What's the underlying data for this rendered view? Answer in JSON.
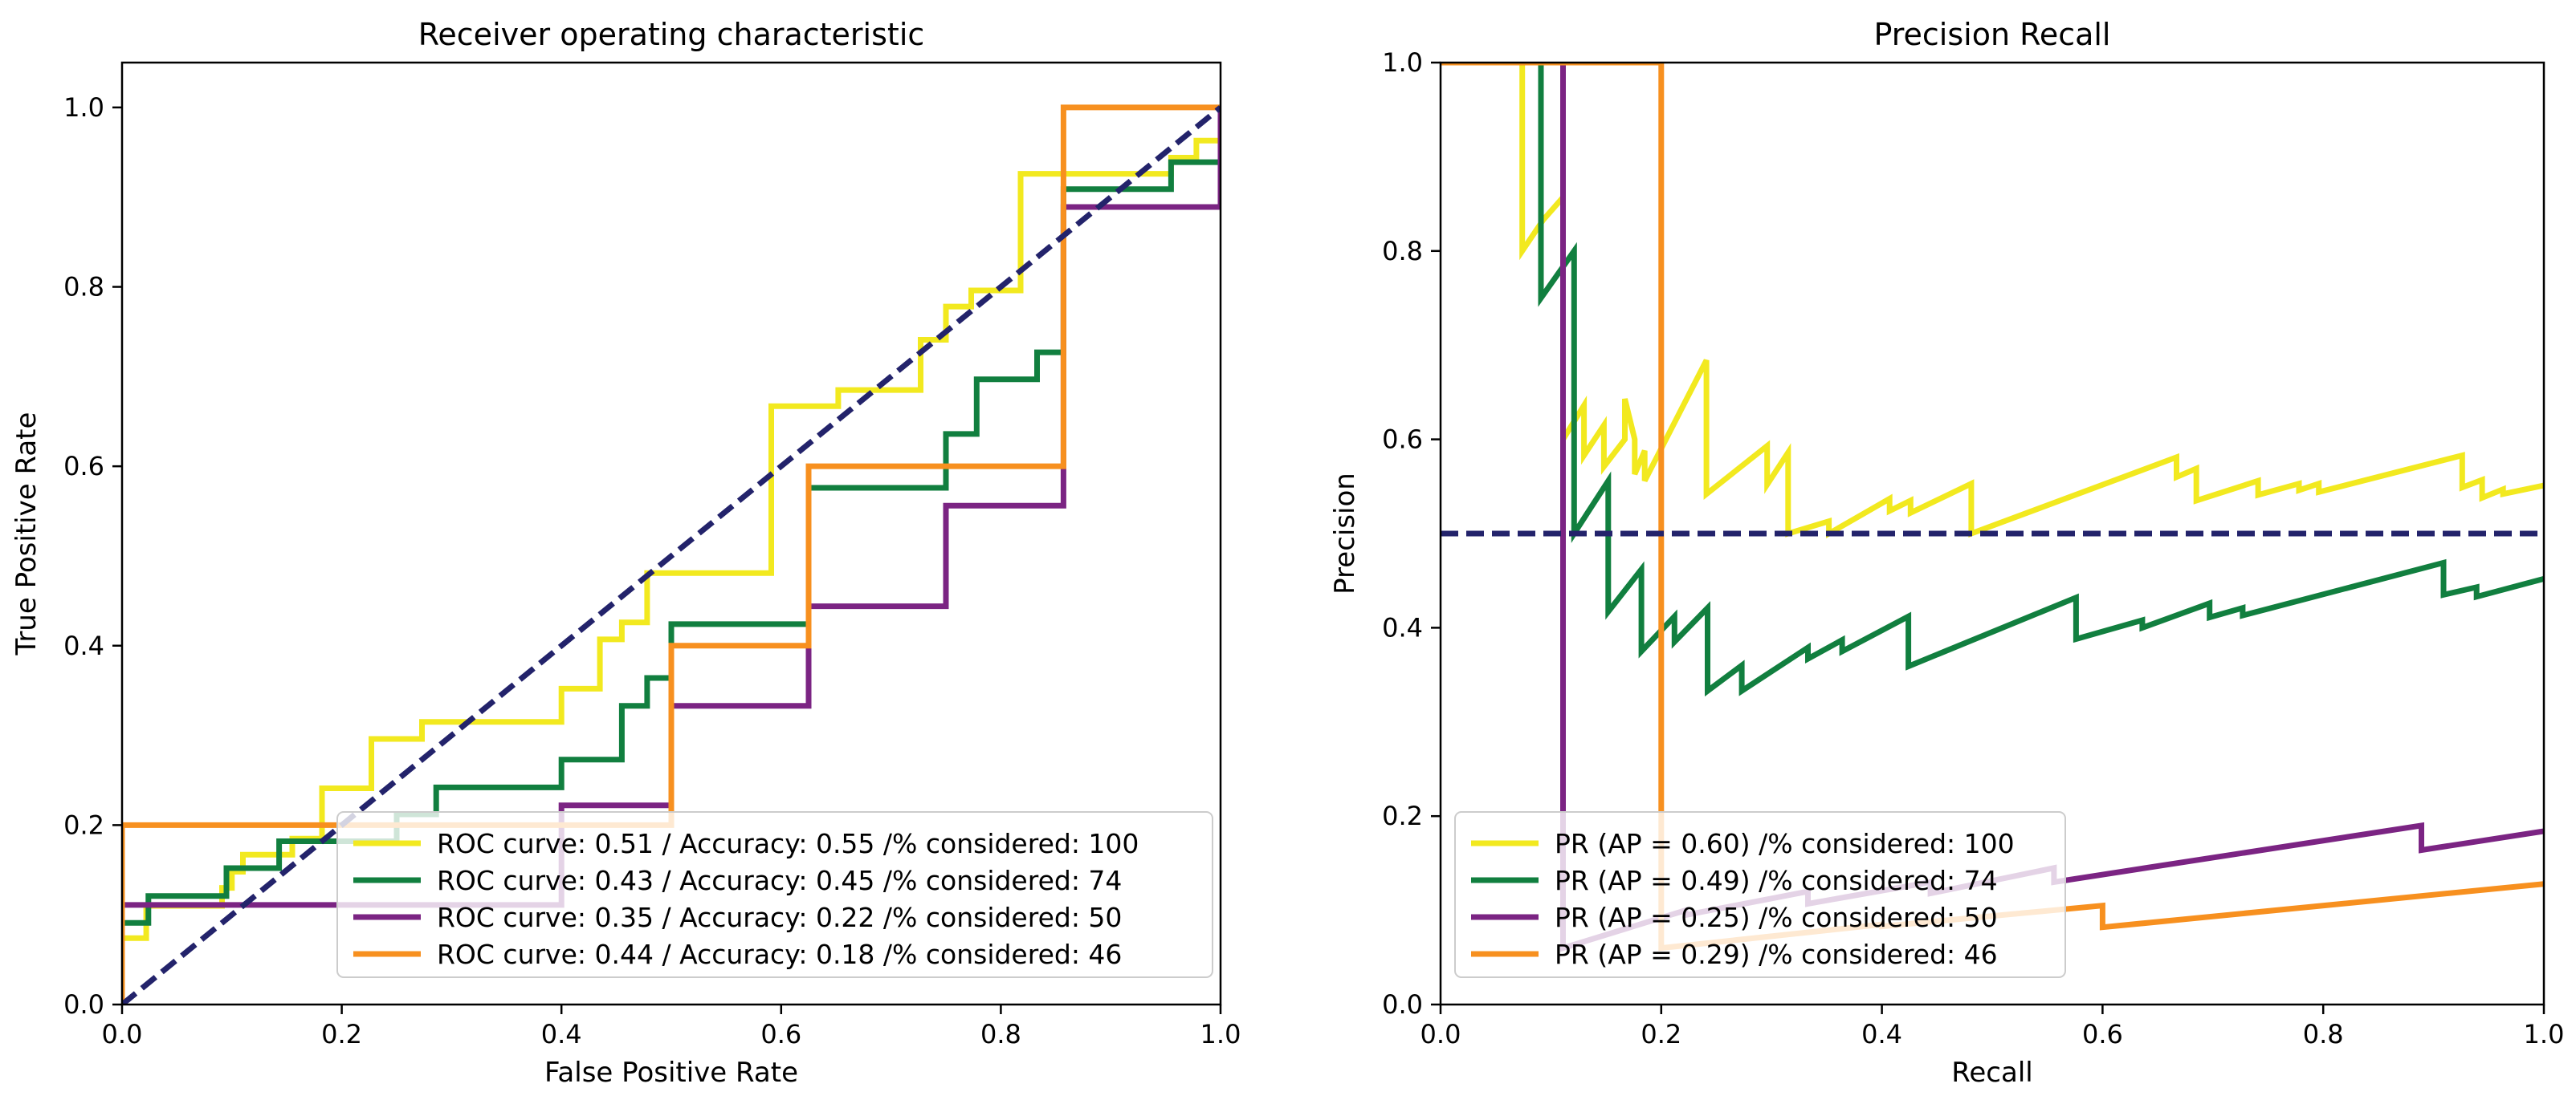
{
  "chart_data": [
    {
      "type": "line",
      "title": "Receiver operating characteristic",
      "xlabel": "False Positive Rate",
      "ylabel": "True Positive Rate",
      "xlim": [
        0,
        1
      ],
      "ylim": [
        0,
        1.05
      ],
      "xticks": [
        "0.0",
        "0.2",
        "0.4",
        "0.6",
        "0.8",
        "1.0"
      ],
      "yticks": [
        "0.0",
        "0.2",
        "0.4",
        "0.6",
        "0.8",
        "1.0"
      ],
      "legend_position": "lower-right",
      "series": [
        {
          "name": "ROC curve: 0.51 / Accuracy: 0.55 /% considered: 100",
          "color": "#f2e91f",
          "points": [
            [
              0,
              0
            ],
            [
              0,
              0.074
            ],
            [
              0.022,
              0.074
            ],
            [
              0.022,
              0.11
            ],
            [
              0.091,
              0.11
            ],
            [
              0.091,
              0.13
            ],
            [
              0.1,
              0.13
            ],
            [
              0.1,
              0.148
            ],
            [
              0.11,
              0.148
            ],
            [
              0.11,
              0.167
            ],
            [
              0.155,
              0.167
            ],
            [
              0.155,
              0.185
            ],
            [
              0.182,
              0.185
            ],
            [
              0.182,
              0.241
            ],
            [
              0.227,
              0.241
            ],
            [
              0.227,
              0.296
            ],
            [
              0.273,
              0.296
            ],
            [
              0.273,
              0.315
            ],
            [
              0.4,
              0.315
            ],
            [
              0.4,
              0.352
            ],
            [
              0.435,
              0.352
            ],
            [
              0.435,
              0.407
            ],
            [
              0.455,
              0.407
            ],
            [
              0.455,
              0.426
            ],
            [
              0.478,
              0.426
            ],
            [
              0.478,
              0.481
            ],
            [
              0.591,
              0.481
            ],
            [
              0.591,
              0.667
            ],
            [
              0.652,
              0.667
            ],
            [
              0.652,
              0.685
            ],
            [
              0.727,
              0.685
            ],
            [
              0.727,
              0.741
            ],
            [
              0.75,
              0.741
            ],
            [
              0.75,
              0.778
            ],
            [
              0.773,
              0.778
            ],
            [
              0.773,
              0.796
            ],
            [
              0.818,
              0.796
            ],
            [
              0.818,
              0.926
            ],
            [
              0.955,
              0.926
            ],
            [
              0.955,
              0.944
            ],
            [
              0.978,
              0.944
            ],
            [
              0.978,
              0.963
            ],
            [
              1,
              0.963
            ],
            [
              1,
              1
            ]
          ]
        },
        {
          "name": "ROC curve: 0.43 / Accuracy: 0.45 /% considered: 74",
          "color": "#117f3f",
          "points": [
            [
              0,
              0
            ],
            [
              0,
              0.091
            ],
            [
              0.024,
              0.091
            ],
            [
              0.024,
              0.121
            ],
            [
              0.095,
              0.121
            ],
            [
              0.095,
              0.152
            ],
            [
              0.143,
              0.152
            ],
            [
              0.143,
              0.182
            ],
            [
              0.25,
              0.182
            ],
            [
              0.25,
              0.212
            ],
            [
              0.286,
              0.212
            ],
            [
              0.286,
              0.242
            ],
            [
              0.4,
              0.242
            ],
            [
              0.4,
              0.273
            ],
            [
              0.455,
              0.273
            ],
            [
              0.455,
              0.333
            ],
            [
              0.478,
              0.333
            ],
            [
              0.478,
              0.364
            ],
            [
              0.5,
              0.364
            ],
            [
              0.5,
              0.424
            ],
            [
              0.625,
              0.424
            ],
            [
              0.625,
              0.576
            ],
            [
              0.75,
              0.576
            ],
            [
              0.75,
              0.636
            ],
            [
              0.778,
              0.636
            ],
            [
              0.778,
              0.697
            ],
            [
              0.833,
              0.697
            ],
            [
              0.833,
              0.727
            ],
            [
              0.857,
              0.727
            ],
            [
              0.857,
              0.909
            ],
            [
              0.955,
              0.909
            ],
            [
              0.955,
              0.939
            ],
            [
              1,
              0.939
            ],
            [
              1,
              1
            ]
          ]
        },
        {
          "name": "ROC curve: 0.35 / Accuracy: 0.22 /% considered: 50",
          "color": "#7b2483",
          "points": [
            [
              0,
              0
            ],
            [
              0,
              0.111
            ],
            [
              0.4,
              0.111
            ],
            [
              0.4,
              0.222
            ],
            [
              0.5,
              0.222
            ],
            [
              0.5,
              0.333
            ],
            [
              0.625,
              0.333
            ],
            [
              0.625,
              0.444
            ],
            [
              0.75,
              0.444
            ],
            [
              0.75,
              0.556
            ],
            [
              0.857,
              0.556
            ],
            [
              0.857,
              0.889
            ],
            [
              1,
              0.889
            ],
            [
              1,
              1
            ]
          ]
        },
        {
          "name": "ROC curve: 0.44 / Accuracy: 0.18 /% considered: 46",
          "color": "#f7901f",
          "points": [
            [
              0,
              0
            ],
            [
              0,
              0.2
            ],
            [
              0.5,
              0.2
            ],
            [
              0.5,
              0.4
            ],
            [
              0.625,
              0.4
            ],
            [
              0.625,
              0.6
            ],
            [
              0.857,
              0.6
            ],
            [
              0.857,
              1
            ],
            [
              1,
              1
            ]
          ]
        },
        {
          "name": "",
          "color": "#23236b",
          "dashed": true,
          "points": [
            [
              0,
              0
            ],
            [
              1,
              1
            ]
          ]
        }
      ]
    },
    {
      "type": "line",
      "title": "Precision Recall",
      "xlabel": "Recall",
      "ylabel": "Precision",
      "xlim": [
        0,
        1
      ],
      "ylim": [
        0,
        1
      ],
      "xticks": [
        "0.0",
        "0.2",
        "0.4",
        "0.6",
        "0.8",
        "1.0"
      ],
      "yticks": [
        "0.0",
        "0.2",
        "0.4",
        "0.6",
        "0.8",
        "1.0"
      ],
      "legend_position": "lower-left",
      "series": [
        {
          "name": "PR (AP = 0.60) /% considered: 100",
          "color": "#f2e91f",
          "points": [
            [
              0.074,
              1
            ],
            [
              0.074,
              0.8
            ],
            [
              0.093,
              0.833
            ],
            [
              0.093,
              0.833
            ],
            [
              0.111,
              0.857
            ],
            [
              0.111,
              0.6
            ],
            [
              0.13,
              0.636
            ],
            [
              0.13,
              0.583
            ],
            [
              0.148,
              0.615
            ],
            [
              0.148,
              0.571
            ],
            [
              0.167,
              0.6
            ],
            [
              0.167,
              0.643
            ],
            [
              0.176,
              0.6
            ],
            [
              0.176,
              0.563
            ],
            [
              0.185,
              0.588
            ],
            [
              0.185,
              0.556
            ],
            [
              0.241,
              0.684
            ],
            [
              0.241,
              0.542
            ],
            [
              0.296,
              0.593
            ],
            [
              0.296,
              0.552
            ],
            [
              0.315,
              0.586
            ],
            [
              0.315,
              0.5
            ],
            [
              0.352,
              0.513
            ],
            [
              0.352,
              0.5
            ],
            [
              0.407,
              0.537
            ],
            [
              0.407,
              0.524
            ],
            [
              0.426,
              0.535
            ],
            [
              0.426,
              0.522
            ],
            [
              0.481,
              0.553
            ],
            [
              0.481,
              0.5
            ],
            [
              0.667,
              0.581
            ],
            [
              0.667,
              0.56
            ],
            [
              0.685,
              0.569
            ],
            [
              0.685,
              0.535
            ],
            [
              0.741,
              0.556
            ],
            [
              0.741,
              0.541
            ],
            [
              0.778,
              0.553
            ],
            [
              0.778,
              0.546
            ],
            [
              0.796,
              0.553
            ],
            [
              0.796,
              0.544
            ],
            [
              0.926,
              0.583
            ],
            [
              0.926,
              0.549
            ],
            [
              0.944,
              0.557
            ],
            [
              0.944,
              0.538
            ],
            [
              0.963,
              0.547
            ],
            [
              0.963,
              0.542
            ],
            [
              1,
              0.551
            ]
          ]
        },
        {
          "name": "PR (AP = 0.49) /% considered: 74",
          "color": "#117f3f",
          "points": [
            [
              0.091,
              1
            ],
            [
              0.091,
              0.75
            ],
            [
              0.121,
              0.8
            ],
            [
              0.121,
              0.5
            ],
            [
              0.152,
              0.556
            ],
            [
              0.152,
              0.417
            ],
            [
              0.182,
              0.462
            ],
            [
              0.182,
              0.375
            ],
            [
              0.212,
              0.412
            ],
            [
              0.212,
              0.385
            ],
            [
              0.242,
              0.421
            ],
            [
              0.242,
              0.333
            ],
            [
              0.273,
              0.36
            ],
            [
              0.273,
              0.333
            ],
            [
              0.333,
              0.379
            ],
            [
              0.333,
              0.367
            ],
            [
              0.364,
              0.387
            ],
            [
              0.364,
              0.375
            ],
            [
              0.424,
              0.412
            ],
            [
              0.424,
              0.359
            ],
            [
              0.576,
              0.432
            ],
            [
              0.576,
              0.388
            ],
            [
              0.636,
              0.408
            ],
            [
              0.636,
              0.4
            ],
            [
              0.697,
              0.426
            ],
            [
              0.697,
              0.411
            ],
            [
              0.727,
              0.421
            ],
            [
              0.727,
              0.413
            ],
            [
              0.909,
              0.469
            ],
            [
              0.909,
              0.435
            ],
            [
              0.939,
              0.443
            ],
            [
              0.939,
              0.433
            ],
            [
              1,
              0.452
            ]
          ]
        },
        {
          "name": "PR (AP = 0.25) /% considered: 50",
          "color": "#7b2483",
          "points": [
            [
              0.111,
              1
            ],
            [
              0.111,
              0.06
            ],
            [
              0.222,
              0.1
            ],
            [
              0.222,
              0.095
            ],
            [
              0.333,
              0.12
            ],
            [
              0.333,
              0.107
            ],
            [
              0.444,
              0.13
            ],
            [
              0.444,
              0.118
            ],
            [
              0.556,
              0.145
            ],
            [
              0.556,
              0.13
            ],
            [
              0.889,
              0.19
            ],
            [
              0.889,
              0.164
            ],
            [
              1,
              0.184
            ]
          ]
        },
        {
          "name": "PR (AP = 0.29) /% considered: 46",
          "color": "#f7901f",
          "points": [
            [
              0,
              1
            ],
            [
              0.2,
              1
            ],
            [
              0.2,
              0.06
            ],
            [
              0.4,
              0.085
            ],
            [
              0.4,
              0.083
            ],
            [
              0.6,
              0.105
            ],
            [
              0.6,
              0.082
            ],
            [
              1,
              0.128
            ]
          ]
        },
        {
          "name": "",
          "color": "#23236b",
          "dashed": true,
          "points": [
            [
              0,
              0.5
            ],
            [
              1,
              0.5
            ]
          ]
        }
      ]
    }
  ]
}
